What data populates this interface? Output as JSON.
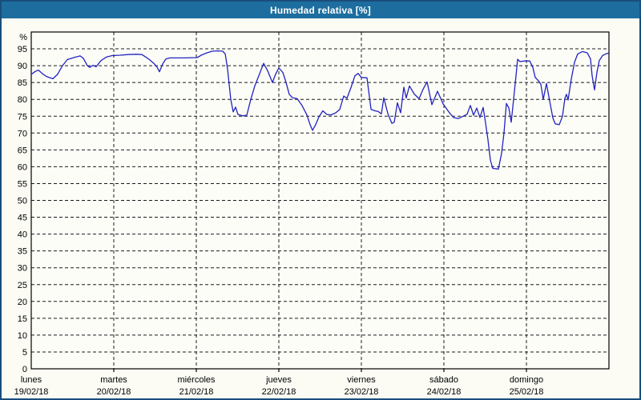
{
  "title": "Humedad relativa [%]",
  "colors": {
    "titlebar_bg": "#1d6e9f",
    "window_border": "#1a4e7c",
    "page_bg": "#fcfcf5",
    "plot_bg": "#fdfdf8",
    "line": "#2222c0",
    "grid": "#1a1a1a",
    "text": "#000000"
  },
  "chart_data": {
    "type": "line",
    "title": "Humedad relativa [%]",
    "ylabel": "%",
    "y_unit_label": "%",
    "ylim": [
      0,
      100
    ],
    "yticks": [
      95,
      90,
      85,
      80,
      75,
      70,
      65,
      60,
      55,
      50,
      45,
      40,
      35,
      30,
      25,
      20,
      15,
      10,
      5,
      0
    ],
    "grid": "dashed",
    "legend": "none",
    "x_categories": [
      {
        "day": "lunes",
        "date": "19/02/18"
      },
      {
        "day": "martes",
        "date": "20/02/18"
      },
      {
        "day": "miércoles",
        "date": "21/02/18"
      },
      {
        "day": "jueves",
        "date": "22/02/18"
      },
      {
        "day": "viernes",
        "date": "23/02/18"
      },
      {
        "day": "sábado",
        "date": "24/02/18"
      },
      {
        "day": "domingo",
        "date": "25/02/18"
      }
    ],
    "series": [
      {
        "name": "Humedad relativa",
        "color": "#2222c0",
        "x_unit": "days_from_monday",
        "points": [
          [
            0.0,
            87.4
          ],
          [
            0.049,
            88.3
          ],
          [
            0.087,
            88.7
          ],
          [
            0.136,
            87.6
          ],
          [
            0.184,
            86.8
          ],
          [
            0.262,
            86.1
          ],
          [
            0.32,
            87.5
          ],
          [
            0.379,
            90.0
          ],
          [
            0.437,
            91.8
          ],
          [
            0.515,
            92.4
          ],
          [
            0.592,
            92.9
          ],
          [
            0.631,
            92.2
          ],
          [
            0.68,
            90.0
          ],
          [
            0.709,
            89.5
          ],
          [
            0.748,
            90.1
          ],
          [
            0.786,
            89.7
          ],
          [
            0.845,
            91.5
          ],
          [
            0.913,
            92.6
          ],
          [
            0.981,
            93.0
          ],
          [
            1.078,
            93.1
          ],
          [
            1.175,
            93.3
          ],
          [
            1.272,
            93.4
          ],
          [
            1.34,
            93.3
          ],
          [
            1.379,
            92.7
          ],
          [
            1.427,
            91.9
          ],
          [
            1.485,
            90.7
          ],
          [
            1.524,
            89.6
          ],
          [
            1.553,
            88.2
          ],
          [
            1.592,
            90.5
          ],
          [
            1.631,
            92.0
          ],
          [
            1.68,
            92.3
          ],
          [
            1.854,
            92.3
          ],
          [
            2.01,
            92.4
          ],
          [
            2.068,
            93.2
          ],
          [
            2.126,
            93.8
          ],
          [
            2.194,
            94.3
          ],
          [
            2.262,
            94.4
          ],
          [
            2.32,
            94.3
          ],
          [
            2.35,
            93.5
          ],
          [
            2.379,
            89.0
          ],
          [
            2.417,
            80.0
          ],
          [
            2.447,
            76.3
          ],
          [
            2.476,
            77.7
          ],
          [
            2.505,
            75.5
          ],
          [
            2.563,
            75.1
          ],
          [
            2.612,
            75.3
          ],
          [
            2.66,
            80.0
          ],
          [
            2.709,
            84.0
          ],
          [
            2.757,
            87.0
          ],
          [
            2.816,
            90.7
          ],
          [
            2.864,
            88.5
          ],
          [
            2.922,
            85.0
          ],
          [
            2.961,
            87.5
          ],
          [
            3.0,
            89.3
          ],
          [
            3.049,
            88.0
          ],
          [
            3.087,
            85.0
          ],
          [
            3.126,
            81.5
          ],
          [
            3.165,
            80.5
          ],
          [
            3.223,
            80.2
          ],
          [
            3.281,
            78.2
          ],
          [
            3.34,
            75.4
          ],
          [
            3.379,
            72.5
          ],
          [
            3.408,
            70.8
          ],
          [
            3.447,
            72.5
          ],
          [
            3.485,
            74.8
          ],
          [
            3.534,
            76.6
          ],
          [
            3.583,
            75.5
          ],
          [
            3.631,
            75.4
          ],
          [
            3.689,
            76.0
          ],
          [
            3.738,
            77.0
          ],
          [
            3.786,
            81.0
          ],
          [
            3.825,
            80.3
          ],
          [
            3.874,
            83.5
          ],
          [
            3.922,
            87.0
          ],
          [
            3.961,
            87.7
          ],
          [
            4.0,
            86.5
          ],
          [
            4.068,
            86.4
          ],
          [
            4.117,
            77.0
          ],
          [
            4.165,
            76.6
          ],
          [
            4.204,
            76.4
          ],
          [
            4.243,
            75.7
          ],
          [
            4.272,
            80.5
          ],
          [
            4.32,
            75.8
          ],
          [
            4.369,
            72.9
          ],
          [
            4.398,
            73.2
          ],
          [
            4.437,
            79.0
          ],
          [
            4.476,
            76.0
          ],
          [
            4.515,
            83.6
          ],
          [
            4.544,
            80.4
          ],
          [
            4.583,
            84.0
          ],
          [
            4.641,
            81.6
          ],
          [
            4.699,
            80.2
          ],
          [
            4.748,
            83.0
          ],
          [
            4.796,
            85.2
          ],
          [
            4.854,
            78.4
          ],
          [
            4.922,
            82.4
          ],
          [
            4.99,
            78.7
          ],
          [
            5.058,
            76.3
          ],
          [
            5.117,
            74.6
          ],
          [
            5.175,
            74.3
          ],
          [
            5.233,
            75.0
          ],
          [
            5.282,
            75.6
          ],
          [
            5.32,
            78.2
          ],
          [
            5.359,
            75.3
          ],
          [
            5.398,
            77.4
          ],
          [
            5.437,
            74.6
          ],
          [
            5.476,
            77.6
          ],
          [
            5.505,
            73.0
          ],
          [
            5.534,
            68.0
          ],
          [
            5.563,
            62.0
          ],
          [
            5.592,
            59.5
          ],
          [
            5.66,
            59.3
          ],
          [
            5.699,
            64.0
          ],
          [
            5.728,
            70.0
          ],
          [
            5.757,
            78.8
          ],
          [
            5.786,
            77.5
          ],
          [
            5.816,
            73.2
          ],
          [
            5.845,
            80.0
          ],
          [
            5.874,
            87.0
          ],
          [
            5.893,
            91.9
          ],
          [
            5.922,
            91.2
          ],
          [
            5.981,
            91.4
          ],
          [
            6.04,
            91.4
          ],
          [
            6.078,
            89.5
          ],
          [
            6.107,
            86.5
          ],
          [
            6.146,
            85.5
          ],
          [
            6.175,
            84.5
          ],
          [
            6.204,
            80.0
          ],
          [
            6.243,
            84.7
          ],
          [
            6.282,
            79.5
          ],
          [
            6.32,
            74.5
          ],
          [
            6.35,
            72.7
          ],
          [
            6.398,
            72.5
          ],
          [
            6.437,
            75.0
          ],
          [
            6.466,
            80.3
          ],
          [
            6.485,
            81.5
          ],
          [
            6.505,
            79.8
          ],
          [
            6.544,
            86.0
          ],
          [
            6.583,
            91.0
          ],
          [
            6.621,
            93.5
          ],
          [
            6.68,
            94.2
          ],
          [
            6.738,
            93.8
          ],
          [
            6.777,
            92.0
          ],
          [
            6.796,
            87.0
          ],
          [
            6.825,
            82.8
          ],
          [
            6.854,
            88.0
          ],
          [
            6.883,
            91.5
          ],
          [
            6.922,
            93.0
          ],
          [
            6.961,
            93.5
          ],
          [
            6.99,
            93.7
          ]
        ]
      }
    ]
  }
}
